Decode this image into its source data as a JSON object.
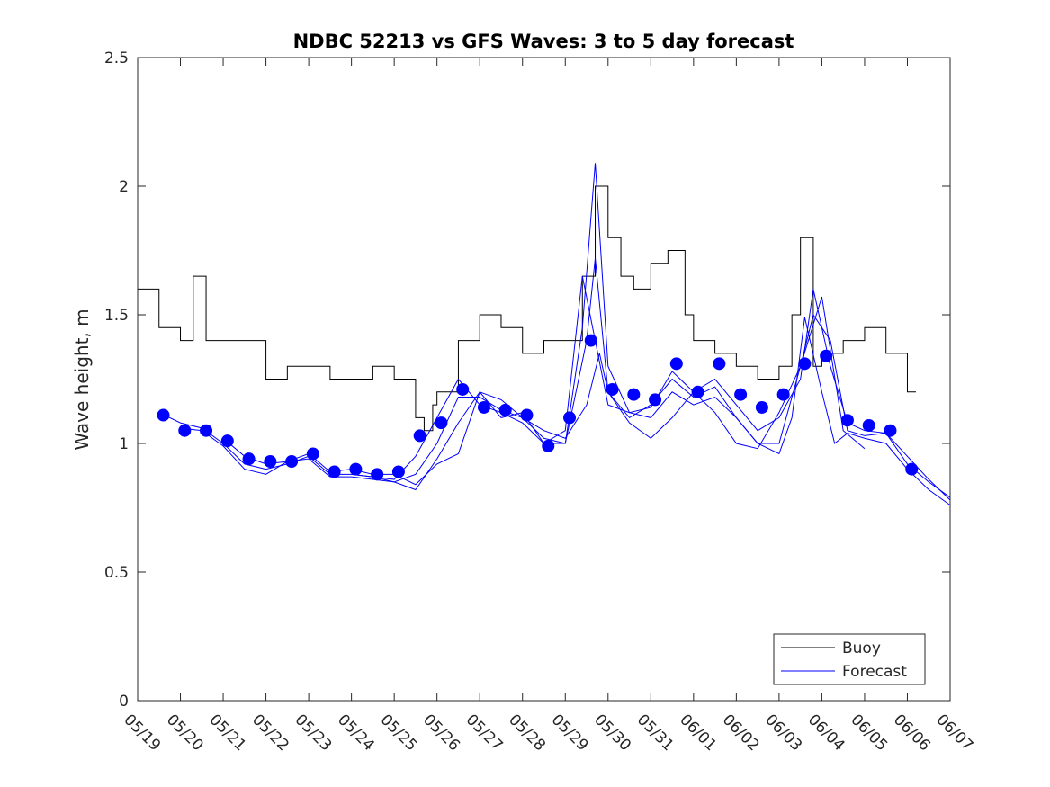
{
  "chart_data": {
    "type": "line",
    "title": "NDBC 52213 vs GFS Waves: 3 to 5 day forecast",
    "xlabel": "",
    "ylabel": "Wave height, m",
    "x_ticks": [
      "05/19",
      "05/20",
      "05/21",
      "05/22",
      "05/23",
      "05/24",
      "05/25",
      "05/26",
      "05/27",
      "05/28",
      "05/29",
      "05/30",
      "05/31",
      "06/01",
      "06/02",
      "06/03",
      "06/04",
      "06/05",
      "06/06",
      "06/07"
    ],
    "xlim": [
      "05/19",
      "06/07"
    ],
    "ylim": [
      0,
      2.5
    ],
    "y_ticks": [
      "0",
      "0.5",
      "1",
      "1.5",
      "2",
      "2.5"
    ],
    "grid": false,
    "legend_position": "bottom-right",
    "legend": [
      {
        "label": "Buoy",
        "color": "#000000"
      },
      {
        "label": "Forecast",
        "color": "#0000ff"
      }
    ],
    "x_unit": "days since 05/19 00:00",
    "buoy": {
      "name": "Buoy",
      "color": "#000000",
      "x": [
        0.0,
        0.5,
        1.0,
        1.3,
        1.6,
        2.0,
        2.5,
        3.0,
        3.5,
        4.0,
        4.5,
        5.0,
        5.5,
        6.0,
        6.5,
        6.7,
        6.9,
        7.0,
        7.5,
        8.0,
        8.5,
        9.0,
        9.5,
        10.0,
        10.4,
        10.7,
        11.0,
        11.3,
        11.6,
        12.0,
        12.4,
        12.8,
        13.0,
        13.5,
        14.0,
        14.5,
        15.0,
        15.3,
        15.5,
        15.8,
        16.0,
        16.5,
        17.0,
        17.5,
        18.0,
        18.2
      ],
      "values": [
        1.6,
        1.45,
        1.4,
        1.65,
        1.4,
        1.4,
        1.4,
        1.25,
        1.3,
        1.3,
        1.25,
        1.25,
        1.3,
        1.25,
        1.1,
        1.05,
        1.15,
        1.2,
        1.4,
        1.5,
        1.45,
        1.35,
        1.4,
        1.4,
        1.65,
        2.0,
        1.8,
        1.65,
        1.6,
        1.7,
        1.75,
        1.5,
        1.4,
        1.35,
        1.3,
        1.25,
        1.3,
        1.5,
        1.8,
        1.3,
        1.35,
        1.4,
        1.45,
        1.35,
        1.2,
        1.2
      ]
    },
    "forecast_points": {
      "name": "Forecast",
      "color": "#0000ff",
      "x": [
        0.6,
        1.1,
        1.6,
        2.1,
        2.6,
        3.1,
        3.6,
        4.1,
        4.6,
        5.1,
        5.6,
        6.1,
        6.6,
        7.1,
        7.6,
        8.1,
        8.6,
        9.1,
        9.6,
        10.1,
        10.6,
        11.1,
        11.6,
        12.1,
        12.6,
        13.1,
        13.6,
        14.1,
        14.6,
        15.1,
        15.6,
        16.1,
        16.6,
        17.1,
        17.6,
        18.1
      ],
      "values": [
        1.11,
        1.05,
        1.05,
        1.01,
        0.94,
        0.93,
        0.93,
        0.96,
        0.89,
        0.9,
        0.88,
        0.89,
        1.03,
        1.08,
        1.21,
        1.14,
        1.13,
        1.11,
        0.99,
        1.1,
        1.4,
        1.21,
        1.19,
        1.17,
        1.31,
        1.2,
        1.31,
        1.19,
        1.14,
        1.19,
        1.31,
        1.34,
        1.09,
        1.07,
        1.05,
        0.9
      ]
    },
    "forecast_runs": [
      {
        "x": [
          0.5,
          1.0,
          1.5,
          2.0,
          2.5,
          3.0,
          3.5,
          4.0,
          4.5,
          5.0,
          5.5,
          6.0,
          6.5,
          7.0,
          7.5,
          8.0,
          8.5,
          9.0,
          9.5,
          10.0,
          10.4,
          10.7,
          11.0,
          11.5,
          12.0,
          12.5,
          13.0,
          13.5,
          14.0,
          14.5,
          15.0,
          15.5,
          15.8,
          16.2,
          16.6,
          17.0,
          17.5,
          18.0,
          18.5,
          19.0
        ],
        "values": [
          1.12,
          1.08,
          1.06,
          1.0,
          0.92,
          0.9,
          0.92,
          0.95,
          0.88,
          0.88,
          0.87,
          0.86,
          0.95,
          1.1,
          1.25,
          1.15,
          1.12,
          1.08,
          1.0,
          1.05,
          1.65,
          1.4,
          1.15,
          1.12,
          1.14,
          1.28,
          1.2,
          1.25,
          1.15,
          1.05,
          1.1,
          1.25,
          1.6,
          1.3,
          1.08,
          1.05,
          1.04,
          0.92,
          0.85,
          0.79
        ]
      },
      {
        "x": [
          1.0,
          1.5,
          2.0,
          2.5,
          3.0,
          3.5,
          4.0,
          4.5,
          5.0,
          5.5,
          6.0,
          6.5,
          7.0,
          7.5,
          8.0,
          8.5,
          9.0,
          9.5,
          10.0,
          10.5,
          10.7,
          11.0,
          11.5,
          12.0,
          12.5,
          13.0,
          13.5,
          14.0,
          14.5,
          15.0,
          15.5,
          15.8,
          16.2,
          16.6,
          17.0,
          17.5,
          18.0,
          18.5,
          19.0
        ],
        "values": [
          1.06,
          1.05,
          0.99,
          0.9,
          0.88,
          0.93,
          0.94,
          0.87,
          0.87,
          0.86,
          0.85,
          0.88,
          1.0,
          1.18,
          1.18,
          1.13,
          1.1,
          1.02,
          1.0,
          1.4,
          1.72,
          1.2,
          1.1,
          1.15,
          1.25,
          1.18,
          1.22,
          1.1,
          1.0,
          1.0,
          1.3,
          1.5,
          1.4,
          1.05,
          1.03,
          1.04,
          0.95,
          0.86,
          0.78
        ]
      },
      {
        "x": [
          2.0,
          2.5,
          3.0,
          3.5,
          4.0,
          4.5,
          5.0,
          5.5,
          6.0,
          6.5,
          7.0,
          7.5,
          8.0,
          8.5,
          9.0,
          9.5,
          10.0,
          10.4,
          10.7,
          11.0,
          11.5,
          12.0,
          12.5,
          13.0,
          13.5,
          14.0,
          14.5,
          15.0,
          15.3,
          15.6,
          16.0,
          16.3,
          16.6,
          17.0,
          17.5,
          18.0,
          18.5,
          19.0
        ],
        "values": [
          1.02,
          0.95,
          0.92,
          0.93,
          0.96,
          0.89,
          0.9,
          0.88,
          0.88,
          0.84,
          0.92,
          0.96,
          1.2,
          1.1,
          1.12,
          1.0,
          1.0,
          1.45,
          2.09,
          1.3,
          1.12,
          1.1,
          1.2,
          1.15,
          1.18,
          1.1,
          1.0,
          0.96,
          1.1,
          1.49,
          1.2,
          1.0,
          1.04,
          1.02,
          1.0,
          0.9,
          0.82,
          0.76
        ]
      },
      {
        "x": [
          5.0,
          5.5,
          6.0,
          6.5,
          7.0,
          7.5,
          8.0,
          8.5,
          9.0,
          9.5,
          10.0,
          10.5,
          10.8,
          11.0,
          11.5,
          12.0,
          12.5,
          13.0,
          13.5,
          14.0,
          14.5,
          15.0,
          15.5,
          16.0,
          16.5,
          17.0
        ],
        "values": [
          0.88,
          0.87,
          0.85,
          0.82,
          0.94,
          1.08,
          1.2,
          1.17,
          1.1,
          1.05,
          1.02,
          1.15,
          1.35,
          1.2,
          1.08,
          1.02,
          1.1,
          1.2,
          1.12,
          1.0,
          0.98,
          1.12,
          1.3,
          1.57,
          1.05,
          0.98
        ]
      }
    ]
  }
}
